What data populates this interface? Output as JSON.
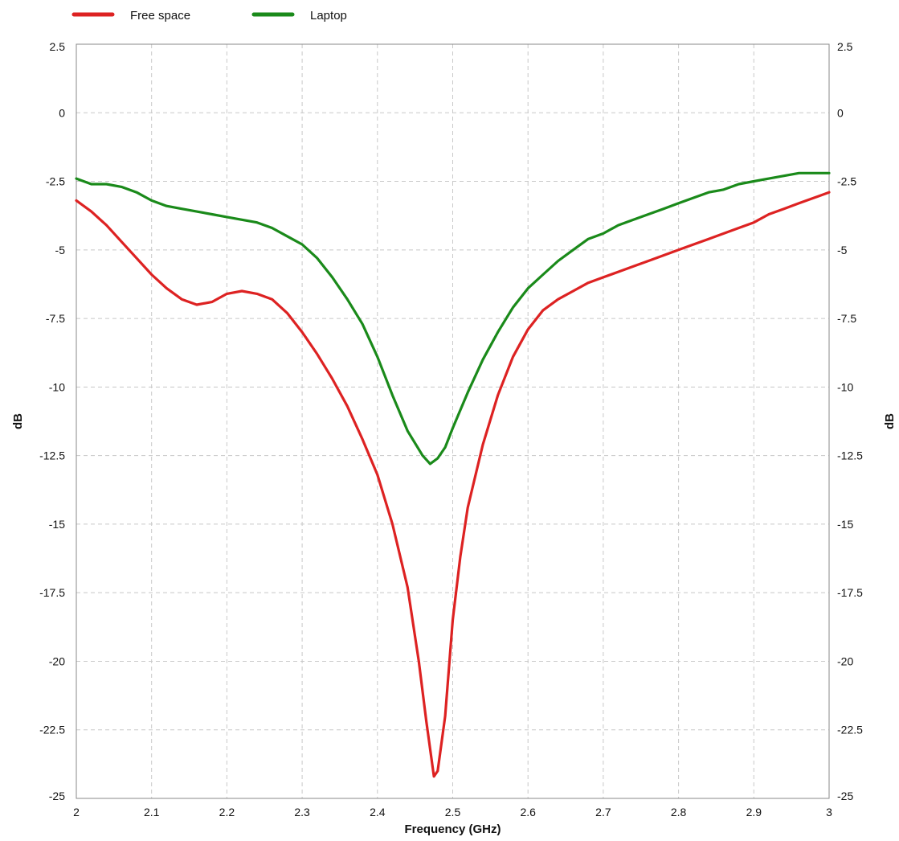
{
  "chart_data": {
    "type": "line",
    "title": "",
    "xlabel": "Frequency (GHz)",
    "ylabel": "dB",
    "ylabel_right": "dB",
    "xlim": [
      2,
      3
    ],
    "ylim": [
      -25,
      2.5
    ],
    "x_ticks": [
      2,
      2.1,
      2.2,
      2.3,
      2.4,
      2.5,
      2.6,
      2.7,
      2.8,
      2.9,
      3
    ],
    "x_tick_labels": [
      "2",
      "2.1",
      "2.2",
      "2.3",
      "2.4",
      "2.5",
      "2.6",
      "2.7",
      "2.8",
      "2.9",
      "3"
    ],
    "y_ticks": [
      2.5,
      0,
      -2.5,
      -5,
      -7.5,
      -10,
      -12.5,
      -15,
      -17.5,
      -20,
      -22.5,
      -25
    ],
    "y_tick_labels": [
      "2.5",
      "0",
      "-2.5",
      "-5",
      "-7.5",
      "-10",
      "-12.5",
      "-15",
      "-17.5",
      "-20",
      "-22.5",
      "-25"
    ],
    "grid": true,
    "legend_position": "top-left",
    "series": [
      {
        "name": "Free space",
        "color": "#dd2222",
        "points": [
          [
            2.0,
            -3.2
          ],
          [
            2.02,
            -3.6
          ],
          [
            2.04,
            -4.1
          ],
          [
            2.06,
            -4.7
          ],
          [
            2.08,
            -5.3
          ],
          [
            2.1,
            -5.9
          ],
          [
            2.12,
            -6.4
          ],
          [
            2.14,
            -6.8
          ],
          [
            2.16,
            -7.0
          ],
          [
            2.18,
            -6.9
          ],
          [
            2.2,
            -6.6
          ],
          [
            2.22,
            -6.5
          ],
          [
            2.24,
            -6.6
          ],
          [
            2.26,
            -6.8
          ],
          [
            2.28,
            -7.3
          ],
          [
            2.3,
            -8.0
          ],
          [
            2.32,
            -8.8
          ],
          [
            2.34,
            -9.7
          ],
          [
            2.36,
            -10.7
          ],
          [
            2.38,
            -11.9
          ],
          [
            2.4,
            -13.2
          ],
          [
            2.42,
            -15.0
          ],
          [
            2.44,
            -17.3
          ],
          [
            2.455,
            -20.0
          ],
          [
            2.465,
            -22.2
          ],
          [
            2.475,
            -24.2
          ],
          [
            2.48,
            -24.0
          ],
          [
            2.49,
            -22.0
          ],
          [
            2.5,
            -18.5
          ],
          [
            2.51,
            -16.2
          ],
          [
            2.52,
            -14.4
          ],
          [
            2.54,
            -12.1
          ],
          [
            2.56,
            -10.3
          ],
          [
            2.58,
            -8.9
          ],
          [
            2.6,
            -7.9
          ],
          [
            2.62,
            -7.2
          ],
          [
            2.64,
            -6.8
          ],
          [
            2.66,
            -6.5
          ],
          [
            2.68,
            -6.2
          ],
          [
            2.7,
            -6.0
          ],
          [
            2.72,
            -5.8
          ],
          [
            2.74,
            -5.6
          ],
          [
            2.76,
            -5.4
          ],
          [
            2.78,
            -5.2
          ],
          [
            2.8,
            -5.0
          ],
          [
            2.82,
            -4.8
          ],
          [
            2.84,
            -4.6
          ],
          [
            2.86,
            -4.4
          ],
          [
            2.88,
            -4.2
          ],
          [
            2.9,
            -4.0
          ],
          [
            2.92,
            -3.7
          ],
          [
            2.94,
            -3.5
          ],
          [
            2.96,
            -3.3
          ],
          [
            2.98,
            -3.1
          ],
          [
            3.0,
            -2.9
          ]
        ]
      },
      {
        "name": "Laptop",
        "color": "#1a8a1a",
        "points": [
          [
            2.0,
            -2.4
          ],
          [
            2.02,
            -2.6
          ],
          [
            2.04,
            -2.6
          ],
          [
            2.06,
            -2.7
          ],
          [
            2.08,
            -2.9
          ],
          [
            2.1,
            -3.2
          ],
          [
            2.12,
            -3.4
          ],
          [
            2.14,
            -3.5
          ],
          [
            2.16,
            -3.6
          ],
          [
            2.18,
            -3.7
          ],
          [
            2.2,
            -3.8
          ],
          [
            2.22,
            -3.9
          ],
          [
            2.24,
            -4.0
          ],
          [
            2.26,
            -4.2
          ],
          [
            2.28,
            -4.5
          ],
          [
            2.3,
            -4.8
          ],
          [
            2.32,
            -5.3
          ],
          [
            2.34,
            -6.0
          ],
          [
            2.36,
            -6.8
          ],
          [
            2.38,
            -7.7
          ],
          [
            2.4,
            -8.9
          ],
          [
            2.42,
            -10.3
          ],
          [
            2.44,
            -11.6
          ],
          [
            2.46,
            -12.5
          ],
          [
            2.47,
            -12.8
          ],
          [
            2.48,
            -12.6
          ],
          [
            2.49,
            -12.2
          ],
          [
            2.5,
            -11.5
          ],
          [
            2.52,
            -10.2
          ],
          [
            2.54,
            -9.0
          ],
          [
            2.56,
            -8.0
          ],
          [
            2.58,
            -7.1
          ],
          [
            2.6,
            -6.4
          ],
          [
            2.62,
            -5.9
          ],
          [
            2.64,
            -5.4
          ],
          [
            2.66,
            -5.0
          ],
          [
            2.68,
            -4.6
          ],
          [
            2.7,
            -4.4
          ],
          [
            2.72,
            -4.1
          ],
          [
            2.74,
            -3.9
          ],
          [
            2.76,
            -3.7
          ],
          [
            2.78,
            -3.5
          ],
          [
            2.8,
            -3.3
          ],
          [
            2.82,
            -3.1
          ],
          [
            2.84,
            -2.9
          ],
          [
            2.86,
            -2.8
          ],
          [
            2.88,
            -2.6
          ],
          [
            2.9,
            -2.5
          ],
          [
            2.92,
            -2.4
          ],
          [
            2.94,
            -2.3
          ],
          [
            2.96,
            -2.2
          ],
          [
            2.98,
            -2.2
          ],
          [
            3.0,
            -2.2
          ]
        ]
      }
    ]
  }
}
